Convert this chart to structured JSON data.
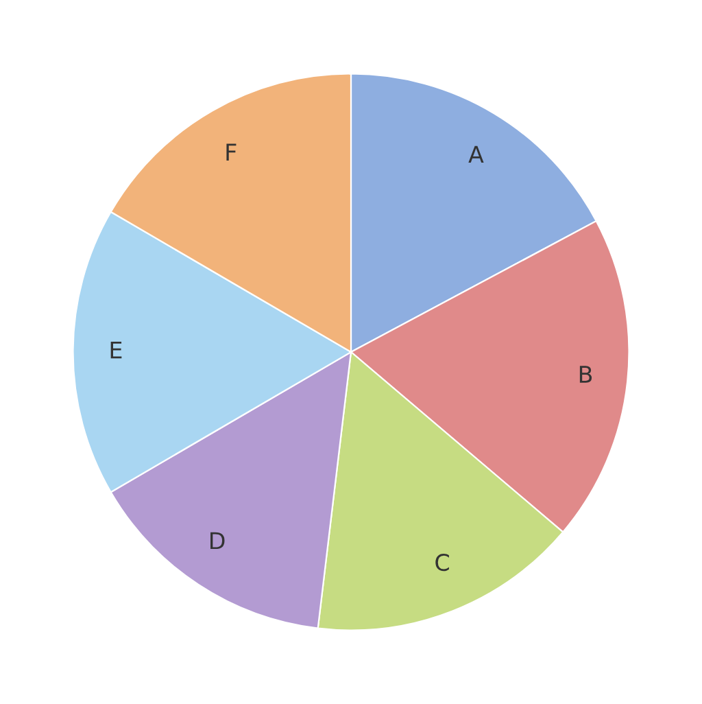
{
  "chart_data": {
    "type": "pie",
    "categories": [
      "A",
      "B",
      "C",
      "D",
      "E",
      "F"
    ],
    "values": [
      17.2,
      19,
      15.7,
      14.7,
      16.8,
      16.6
    ],
    "colors": [
      "#8eaee0",
      "#e08a8a",
      "#c6dc82",
      "#b39bd2",
      "#a9d6f2",
      "#f2b37a"
    ]
  }
}
